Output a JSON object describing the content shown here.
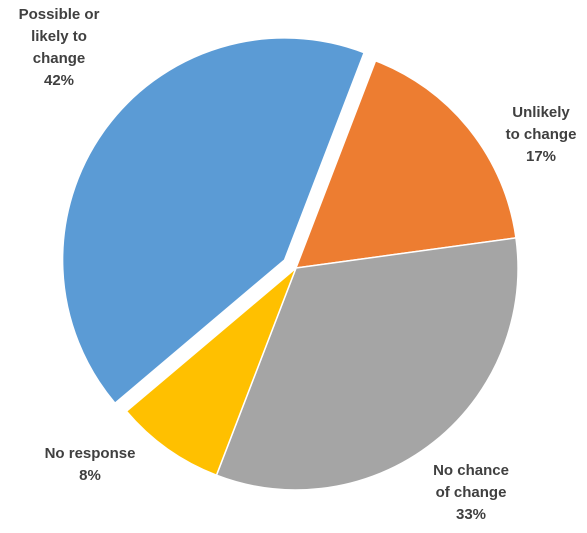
{
  "chart_data": {
    "type": "pie",
    "title": "",
    "categories": [
      "Possible or likely to change",
      "Unlikely to change",
      "No chance of change",
      "No response"
    ],
    "values": [
      42,
      17,
      33,
      8
    ],
    "labels": [
      {
        "category": "Possible  or\nlikely to\nchange",
        "value": "42%"
      },
      {
        "category": "Unlikely\nto change",
        "value": "17%"
      },
      {
        "category": "No chance\nof change",
        "value": "33%"
      },
      {
        "category": "No response",
        "value": "8%"
      }
    ],
    "colors": [
      "#5B9BD5",
      "#ED7D31",
      "#A5A5A5",
      "#FFC000"
    ],
    "exploded_category": "Possible or likely to change",
    "legend": "none"
  }
}
